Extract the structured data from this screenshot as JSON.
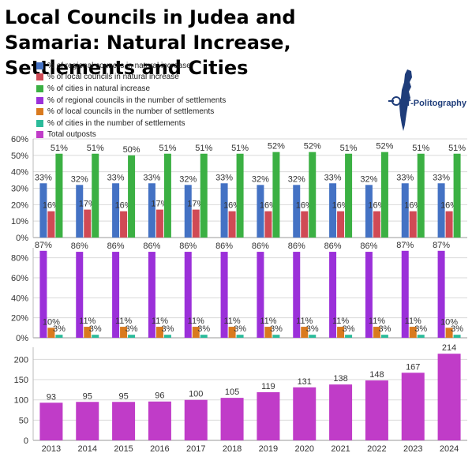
{
  "title": "Local Councils in Judea and Samaria: Natural Increase, Settlements and Cities",
  "logo": {
    "text": "T-Politography",
    "color": "#1f3d7a"
  },
  "legend": [
    {
      "label": "% of regional councils in natural increase",
      "color": "#4472c4"
    },
    {
      "label": "% of local councils in natural increase",
      "color": "#d04a55"
    },
    {
      "label": "% of cities in natural increase",
      "color": "#3bb043"
    },
    {
      "label": "% of regional councils in the number of settlements",
      "color": "#9b30d9"
    },
    {
      "label": "% of local councils in the number of settlements",
      "color": "#d97a1f"
    },
    {
      "label": "% of cities in the number of settlements",
      "color": "#2bbb9a"
    },
    {
      "label": "Total outposts",
      "color": "#c03cc8"
    }
  ],
  "chart_data": [
    {
      "type": "bar",
      "title": "",
      "categories": [
        "2013",
        "2014",
        "2015",
        "2016",
        "2017",
        "2018",
        "2019",
        "2020",
        "2021",
        "2022",
        "2023",
        "2024"
      ],
      "ylim": [
        0,
        60
      ],
      "yticks": [
        "0%",
        "10%",
        "20%",
        "30%",
        "40%",
        "50%",
        "60%"
      ],
      "grid": true,
      "series": [
        {
          "name": "% of regional councils in natural increase",
          "color": "#4472c4",
          "values": [
            33,
            32,
            33,
            33,
            32,
            33,
            32,
            32,
            33,
            32,
            33,
            33
          ],
          "labels": [
            "33%",
            "32%",
            "33%",
            "33%",
            "32%",
            "33%",
            "32%",
            "32%",
            "33%",
            "32%",
            "33%",
            "33%"
          ]
        },
        {
          "name": "% of local councils in natural increase",
          "color": "#d04a55",
          "values": [
            16,
            17,
            16,
            17,
            17,
            16,
            16,
            16,
            16,
            16,
            16,
            16
          ],
          "labels": [
            "16%",
            "17%",
            "16%",
            "17%",
            "17%",
            "16%",
            "16%",
            "16%",
            "16%",
            "16%",
            "16%",
            "16%"
          ]
        },
        {
          "name": "% of cities in natural increase",
          "color": "#3bb043",
          "values": [
            51,
            51,
            50,
            51,
            51,
            51,
            52,
            52,
            51,
            52,
            51,
            51
          ],
          "labels": [
            "51%",
            "51%",
            "50%",
            "51%",
            "51%",
            "51%",
            "52%",
            "52%",
            "51%",
            "52%",
            "51%",
            "51%"
          ]
        }
      ]
    },
    {
      "type": "bar",
      "title": "",
      "categories": [
        "2013",
        "2014",
        "2015",
        "2016",
        "2017",
        "2018",
        "2019",
        "2020",
        "2021",
        "2022",
        "2023",
        "2024"
      ],
      "ylim": [
        0,
        90
      ],
      "yticks": [
        "0%",
        "20%",
        "40%",
        "60%",
        "80%"
      ],
      "grid": true,
      "series": [
        {
          "name": "% of regional councils in the number of settlements",
          "color": "#9b30d9",
          "values": [
            87,
            86,
            86,
            86,
            86,
            86,
            86,
            86,
            86,
            86,
            87,
            87
          ],
          "labels": [
            "87%",
            "86%",
            "86%",
            "86%",
            "86%",
            "86%",
            "86%",
            "86%",
            "86%",
            "86%",
            "87%",
            "87%"
          ]
        },
        {
          "name": "% of local councils in the number of settlements",
          "color": "#d97a1f",
          "values": [
            10,
            11,
            11,
            11,
            11,
            11,
            11,
            11,
            11,
            11,
            11,
            10
          ],
          "labels": [
            "10%",
            "11%",
            "11%",
            "11%",
            "11%",
            "11%",
            "11%",
            "11%",
            "11%",
            "11%",
            "11%",
            "10%"
          ]
        },
        {
          "name": "% of cities in the number of settlements",
          "color": "#2bbb9a",
          "values": [
            3,
            3,
            3,
            3,
            3,
            3,
            3,
            3,
            3,
            3,
            3,
            3
          ],
          "labels": [
            "3%",
            "3%",
            "3%",
            "3%",
            "3%",
            "3%",
            "3%",
            "3%",
            "3%",
            "3%",
            "3%",
            "3%"
          ]
        }
      ]
    },
    {
      "type": "bar",
      "title": "",
      "categories": [
        "2013",
        "2014",
        "2015",
        "2016",
        "2017",
        "2018",
        "2019",
        "2020",
        "2021",
        "2022",
        "2023",
        "2024"
      ],
      "xticks": [
        "2013",
        "2014",
        "2015",
        "2016",
        "2017",
        "2018",
        "2019",
        "2020",
        "2021",
        "2022",
        "2023",
        "2024"
      ],
      "ylim": [
        0,
        230
      ],
      "yticks": [
        "0",
        "50",
        "100",
        "150",
        "200"
      ],
      "grid": true,
      "series": [
        {
          "name": "Total outposts",
          "color": "#c03cc8",
          "values": [
            93,
            95,
            95,
            96,
            100,
            105,
            119,
            131,
            138,
            148,
            167,
            214
          ],
          "labels": [
            "93",
            "95",
            "95",
            "96",
            "100",
            "105",
            "119",
            "131",
            "138",
            "148",
            "167",
            "214"
          ]
        }
      ]
    }
  ]
}
